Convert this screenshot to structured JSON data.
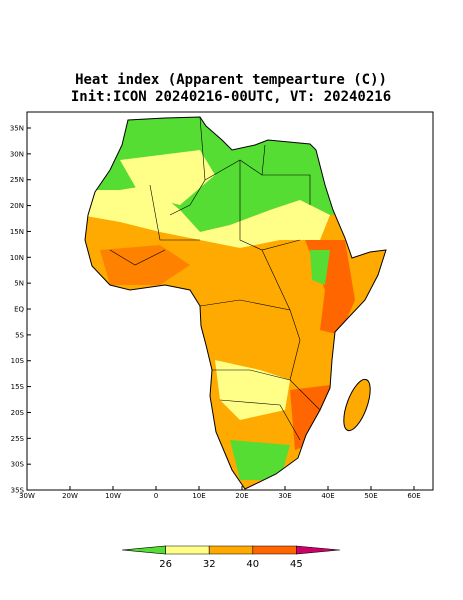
{
  "title": "Heat index (Apparent tempearture (C))",
  "subtitle": "Init:ICON 20240216-00UTC, VT: 20240216",
  "lat_labels": [
    "35N",
    "30N",
    "25N",
    "20N",
    "15N",
    "10N",
    "5N",
    "EQ",
    "5S",
    "10S",
    "15S",
    "20S",
    "25S",
    "30S",
    "35S"
  ],
  "lon_labels": [
    "30W",
    "20W",
    "10W",
    "0",
    "10E",
    "20E",
    "30E",
    "40E",
    "50E",
    "60E"
  ],
  "colorbar": {
    "labels": [
      26,
      32,
      40,
      45
    ],
    "colors": [
      "#55dd33",
      "#ffff88",
      "#ffaa00",
      "#ff6600",
      "#cc0066"
    ]
  }
}
